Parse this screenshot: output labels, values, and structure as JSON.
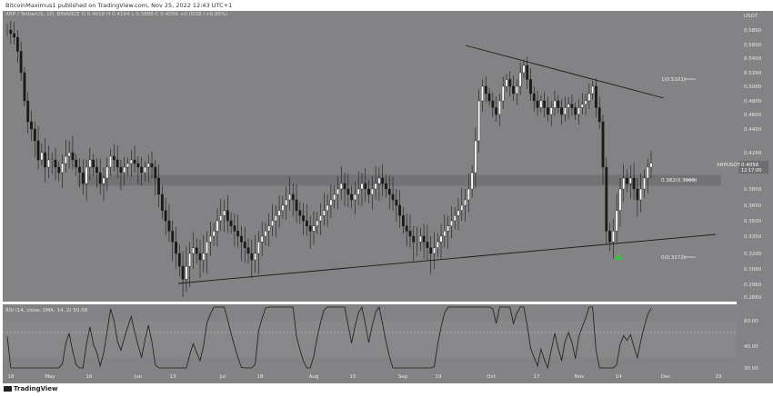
{
  "header": {
    "attribution": "BitcoinMaximus1 published on TradingView.com, Nov 25, 2022 12:43 UTC+1"
  },
  "legend": {
    "symbol": "XRP / TetherUS, 1D, BINANCE",
    "ohlc": "O 0.4018  H 0.4194  L 0.3888  C 0.4056  +0.0038 (+0.95%)"
  },
  "price_axis": {
    "currency": "USDT",
    "ticks": [
      "0.5800",
      "0.5600",
      "0.5400",
      "0.5200",
      "0.5000",
      "0.4800",
      "0.4600",
      "0.4400",
      "0.4200",
      "0.4000",
      "0.3800",
      "0.3650",
      "0.3500",
      "0.3350",
      "0.3200",
      "0.3080",
      "0.2960",
      "0.2860"
    ],
    "current_label": "XRPUSDT",
    "current_price": "0.4056",
    "countdown": "12:17:00"
  },
  "rsi_axis": {
    "ticks": [
      "60.00",
      "40.00",
      "30.00"
    ]
  },
  "rsi_label": "RSI (14, close, SMA, 14, 2)  50.58",
  "time_axis": {
    "ticks": [
      "18",
      "May",
      "16",
      "Jun",
      "13",
      "Jul",
      "18",
      "Aug",
      "15",
      "Sep",
      "19",
      "Oct",
      "17",
      "Nov",
      "14",
      "Dec",
      "19"
    ]
  },
  "fib_labels": [
    "1(0.5101)",
    "0.382(0.3909)",
    "0(0.3172)"
  ],
  "footer": {
    "brand": "TradingView"
  },
  "colors": {
    "background": "#838385",
    "rsi_band": "#8e8e90",
    "grid": "#8f8f91",
    "candle": "#ffffff",
    "wick": "#1a1a1a",
    "support_zone": "#6f6f72",
    "trendline": "#1a1a1a",
    "arrow": "#2ecc40"
  },
  "chart_data": {
    "type": "candlestick",
    "title": "XRP / TetherUS, 1D, BINANCE",
    "ylabel": "USDT",
    "ylim": [
      0.28,
      0.59
    ],
    "annotations": {
      "descending_resistance": "from ~0.555 (early Sep) to ~0.485 (late Nov)",
      "ascending_support": "from ~0.289 (mid Jun) to ~0.338 (late Nov)",
      "horizontal_support_zone": [
        0.383,
        0.393
      ],
      "fib_levels": [
        {
          "level": "1",
          "price": 0.5101
        },
        {
          "level": "0.382",
          "price": 0.3909
        },
        {
          "level": "0",
          "price": 0.3172
        }
      ],
      "bullish_arrow": "Nov 14, below low"
    },
    "series": [
      {
        "name": "XRPUSDT",
        "close": [
          0.58,
          0.575,
          0.57,
          0.55,
          0.52,
          0.48,
          0.45,
          0.44,
          0.43,
          0.41,
          0.42,
          0.4,
          0.41,
          0.41,
          0.4,
          0.395,
          0.405,
          0.415,
          0.42,
          0.41,
          0.4,
          0.395,
          0.385,
          0.4,
          0.41,
          0.4,
          0.395,
          0.385,
          0.39,
          0.4,
          0.415,
          0.41,
          0.4,
          0.395,
          0.4,
          0.405,
          0.41,
          0.405,
          0.4,
          0.395,
          0.4,
          0.405,
          0.4,
          0.39,
          0.375,
          0.36,
          0.35,
          0.34,
          0.33,
          0.32,
          0.31,
          0.3,
          0.31,
          0.32,
          0.325,
          0.32,
          0.315,
          0.32,
          0.33,
          0.335,
          0.34,
          0.35,
          0.355,
          0.36,
          0.35,
          0.345,
          0.34,
          0.335,
          0.33,
          0.325,
          0.32,
          0.315,
          0.32,
          0.33,
          0.335,
          0.34,
          0.345,
          0.35,
          0.355,
          0.36,
          0.365,
          0.37,
          0.375,
          0.37,
          0.36,
          0.355,
          0.35,
          0.345,
          0.34,
          0.345,
          0.35,
          0.355,
          0.36,
          0.365,
          0.37,
          0.375,
          0.38,
          0.385,
          0.38,
          0.375,
          0.37,
          0.375,
          0.38,
          0.385,
          0.38,
          0.375,
          0.38,
          0.385,
          0.39,
          0.385,
          0.38,
          0.375,
          0.37,
          0.365,
          0.355,
          0.345,
          0.34,
          0.335,
          0.33,
          0.33,
          0.335,
          0.33,
          0.325,
          0.32,
          0.325,
          0.33,
          0.335,
          0.34,
          0.345,
          0.35,
          0.355,
          0.36,
          0.365,
          0.37,
          0.38,
          0.395,
          0.43,
          0.48,
          0.5,
          0.49,
          0.48,
          0.47,
          0.46,
          0.48,
          0.5,
          0.51,
          0.5,
          0.49,
          0.5,
          0.52,
          0.53,
          0.51,
          0.49,
          0.48,
          0.47,
          0.48,
          0.47,
          0.46,
          0.47,
          0.48,
          0.47,
          0.46,
          0.47,
          0.475,
          0.47,
          0.46,
          0.47,
          0.475,
          0.48,
          0.49,
          0.5,
          0.47,
          0.45,
          0.4,
          0.34,
          0.33,
          0.34,
          0.36,
          0.38,
          0.39,
          0.385,
          0.39,
          0.38,
          0.37,
          0.38,
          0.39,
          0.4,
          0.4056
        ]
      }
    ]
  }
}
